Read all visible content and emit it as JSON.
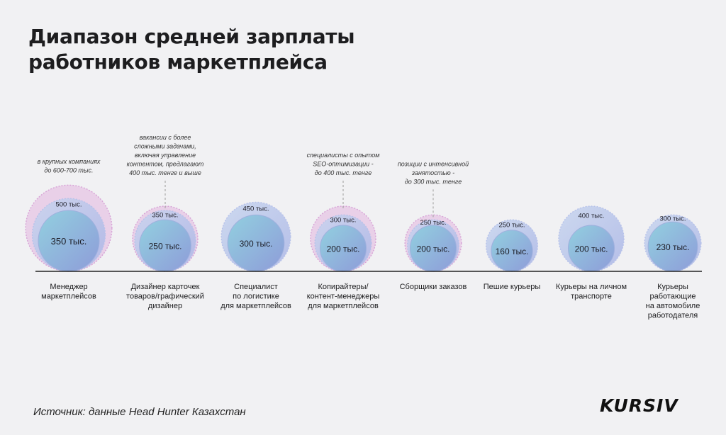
{
  "title": {
    "line1": "Диапазон средней зарплаты",
    "line2": "работников маркетплейса"
  },
  "source": "Источник: данные Head Hunter Казахстан",
  "logo": "KURSIV",
  "colors": {
    "background": "#f1f1f3",
    "inner_circle": "#8fc4dc",
    "inner_circle_edge": "#8f9fd8",
    "outer_circle": "#b9c5ea",
    "max_halo": "#e1b4df",
    "baseline": "#222222"
  },
  "chart_data": {
    "type": "bubble",
    "title": "Диапазон средней зарплаты работников маркетплейса",
    "unit": "тыс. тенге",
    "categories": [
      {
        "label": [
          "Менеджер",
          "маркетплейсов"
        ],
        "low": 350,
        "low_label": "350 тыс.",
        "high": 500,
        "high_label": "500 тыс.",
        "max": 700,
        "note": [
          "в крупных компаниях",
          "до 600-700 тыс."
        ]
      },
      {
        "label": [
          "Дизайнер карточек",
          "товаров/графический",
          "дизайнер"
        ],
        "low": 250,
        "low_label": "250 тыс.",
        "high": 350,
        "high_label": "350 тыс.",
        "max": 400,
        "note": [
          "вакансии с более",
          "сложными задачами,",
          "включая управление",
          "контентом, предлагают",
          "400 тыс. тенге и выше"
        ]
      },
      {
        "label": [
          "Специалист",
          "по логистике",
          "для маркетплейсов"
        ],
        "low": 300,
        "low_label": "300 тыс.",
        "high": 450,
        "high_label": "450 тыс.",
        "max": null,
        "note": []
      },
      {
        "label": [
          "Копирайтеры/",
          "контент-менеджеры",
          "для маркетплейсов"
        ],
        "low": 200,
        "low_label": "200 тыс.",
        "high": 300,
        "high_label": "300 тыс.",
        "max": 400,
        "note": [
          "специалисты с опытом",
          "SEO-оптимизации -",
          "до 400 тыс. тенге"
        ]
      },
      {
        "label": [
          "Сборщики заказов"
        ],
        "low": 200,
        "low_label": "200 тыс.",
        "high": 250,
        "high_label": "250 тыс.",
        "max": 300,
        "note": [
          "позиции с интенсивной",
          "занятостью -",
          "до 300 тыс. тенге"
        ]
      },
      {
        "label": [
          "Пешие курьеры"
        ],
        "low": 160,
        "low_label": "160 тыс.",
        "high": 250,
        "high_label": "250 тыс.",
        "max": null,
        "note": []
      },
      {
        "label": [
          "Курьеры на личном",
          "транспорте"
        ],
        "low": 200,
        "low_label": "200 тыс.",
        "high": 400,
        "high_label": "400 тыс.",
        "max": null,
        "note": []
      },
      {
        "label": [
          "Курьеры",
          "работающие",
          "на автомобиле",
          "работодателя"
        ],
        "low": 230,
        "low_label": "230 тыс.",
        "high": 300,
        "high_label": "300 тыс.",
        "max": null,
        "note": []
      }
    ]
  }
}
